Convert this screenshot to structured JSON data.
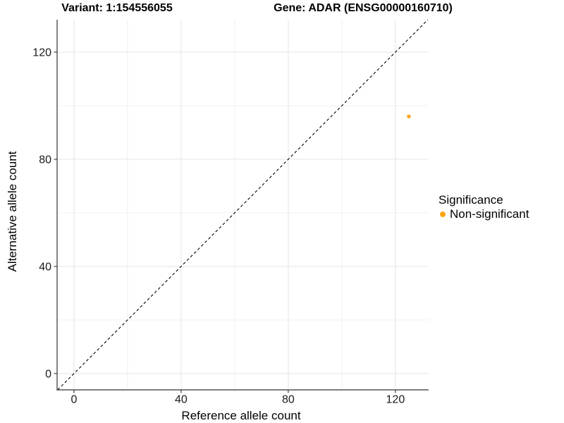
{
  "chart_data": {
    "type": "scatter",
    "title_left": "Variant: 1:154556055",
    "title_right": "Gene: ADAR (ENSG00000160710)",
    "xlabel": "Reference allele count",
    "ylabel": "Alternative allele count",
    "xlim": [
      -6.3,
      132.4
    ],
    "ylim": [
      -6.1,
      132.1
    ],
    "x_ticks": [
      0,
      40,
      80,
      120
    ],
    "y_ticks": [
      0,
      40,
      80,
      120
    ],
    "x_minor_ticks": [
      20,
      60,
      100
    ],
    "y_minor_ticks": [
      20,
      60,
      100
    ],
    "grid": "major+minor",
    "background": "#ffffff",
    "reference_line": {
      "type": "identity",
      "style": "dashed",
      "color": "#000000"
    },
    "series": [
      {
        "name": "Non-significant",
        "color": "#FFA415",
        "points": [
          {
            "x": 125,
            "y": 96
          }
        ]
      }
    ],
    "legend": {
      "title": "Significance",
      "position": "right",
      "items": [
        {
          "label": "Non-significant",
          "color": "#FFA415",
          "marker": "circle"
        }
      ]
    }
  }
}
